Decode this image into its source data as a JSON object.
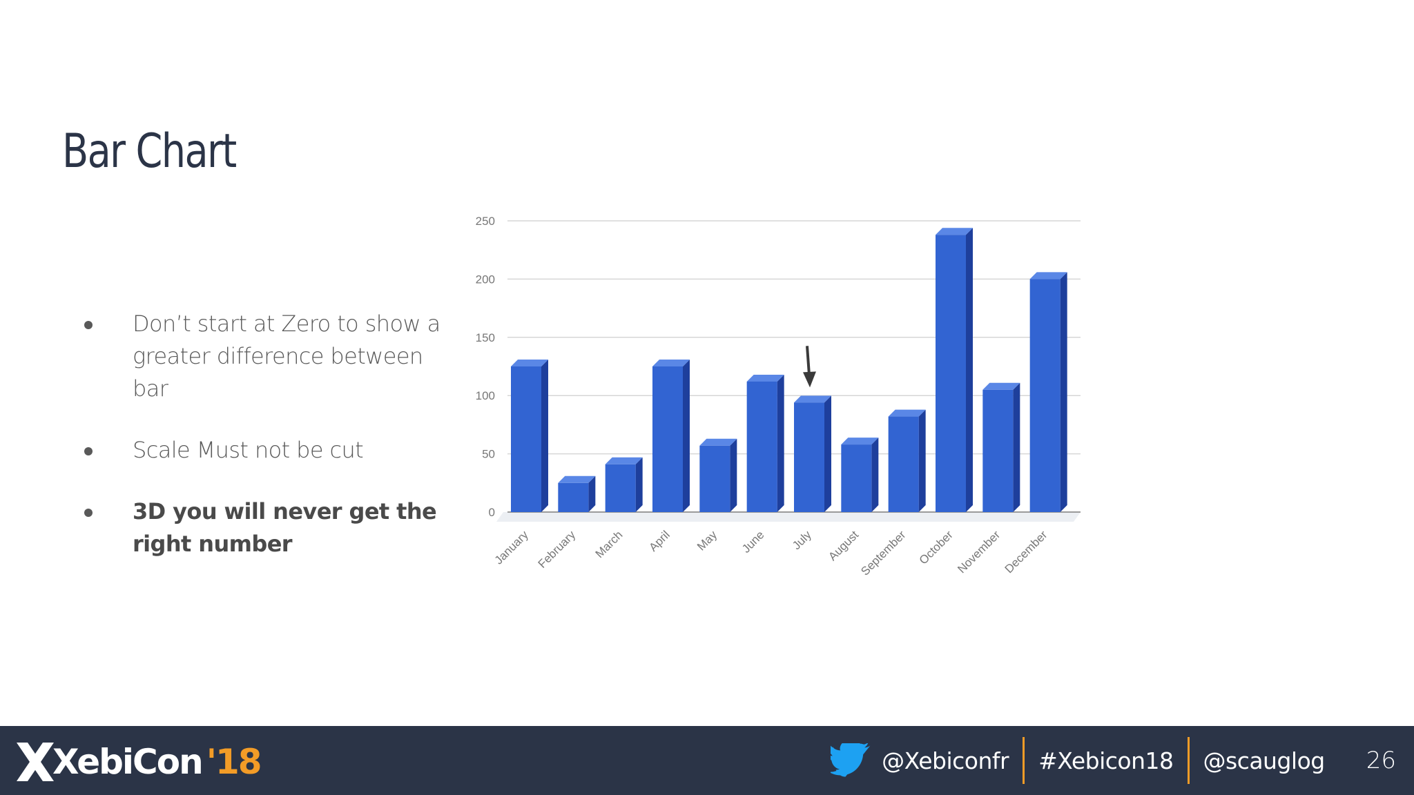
{
  "slide": {
    "title": "Bar Chart",
    "bullets": [
      {
        "text": "Don’t start at Zero to show a greater difference between bar",
        "bold": false
      },
      {
        "text": "Scale Must not be cut",
        "bold": false
      },
      {
        "text": "3D you will never get the right number",
        "bold": true
      }
    ]
  },
  "chart_data": {
    "type": "bar",
    "style": "3d",
    "categories": [
      "January",
      "February",
      "March",
      "April",
      "May",
      "June",
      "July",
      "August",
      "September",
      "October",
      "November",
      "December"
    ],
    "values": [
      125,
      25,
      41,
      125,
      57,
      112,
      94,
      58,
      82,
      238,
      105,
      200
    ],
    "ylim": [
      0,
      250
    ],
    "yticks": [
      0,
      50,
      100,
      150,
      200,
      250
    ],
    "grid": true,
    "bar_color": "#3264d2",
    "bar_side_color": "#1e3f9c",
    "bar_top_color": "#5a87e6",
    "annotation": {
      "type": "arrow",
      "category": "July"
    }
  },
  "footer": {
    "logo_text": "XebiCon",
    "logo_year": "'18",
    "twitter_handle": "@Xebiconfr",
    "hashtag": "#Xebicon18",
    "speaker_handle": "@scauglog",
    "page_number": "26"
  },
  "colors": {
    "footer_bg": "#2b3447",
    "accent": "#f39c27",
    "twitter": "#1da1f2"
  }
}
